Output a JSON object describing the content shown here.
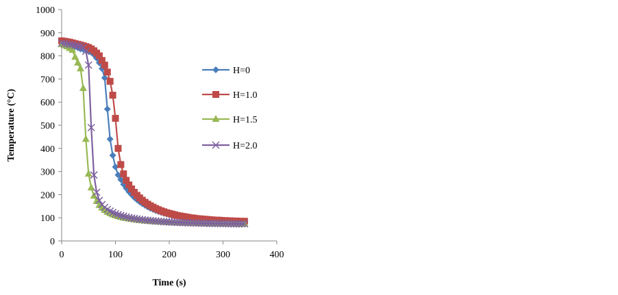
{
  "chart_data": {
    "type": "line",
    "xlabel": "Time (s)",
    "ylabel": "Temperature (°C)",
    "xlim": [
      0,
      400
    ],
    "ylim": [
      0,
      1000
    ],
    "xticks": [
      0,
      100,
      200,
      300,
      400
    ],
    "yticks": [
      0,
      100,
      200,
      300,
      400,
      500,
      600,
      700,
      800,
      900,
      1000
    ],
    "grid": false,
    "legend": "right",
    "x": [
      0,
      5,
      10,
      15,
      20,
      25,
      30,
      35,
      40,
      45,
      50,
      55,
      60,
      65,
      70,
      75,
      80,
      85,
      90,
      95,
      100,
      105,
      110,
      115,
      120,
      125,
      130,
      135,
      140,
      145,
      150,
      155,
      160,
      165,
      170,
      175,
      180,
      185,
      190,
      195,
      200,
      205,
      210,
      215,
      220,
      225,
      230,
      235,
      240,
      245,
      250,
      255,
      260,
      265,
      270,
      275,
      280,
      285,
      290,
      295,
      300,
      305,
      310,
      315,
      320,
      325,
      330,
      335,
      340
    ],
    "series": [
      {
        "name": "H=0",
        "color": "#4a7ebb",
        "marker": "diamond",
        "values": [
          860,
          858,
          855,
          850,
          845,
          840,
          835,
          830,
          828,
          825,
          820,
          815,
          805,
          790,
          770,
          745,
          705,
          570,
          440,
          370,
          320,
          285,
          265,
          245,
          228,
          213,
          200,
          188,
          178,
          169,
          161,
          154,
          147,
          141,
          136,
          131,
          127,
          123,
          119,
          116,
          113,
          110,
          107,
          105,
          103,
          101,
          99,
          97,
          96,
          94,
          93,
          92,
          91,
          90,
          89,
          88,
          87,
          86,
          86,
          85,
          84,
          84,
          83,
          83,
          82,
          82,
          81,
          81,
          80
        ]
      },
      {
        "name": "H=1.0",
        "color": "#be4b48",
        "marker": "square",
        "values": [
          865,
          863,
          861,
          859,
          856,
          853,
          850,
          847,
          844,
          840,
          836,
          830,
          822,
          812,
          800,
          780,
          760,
          730,
          690,
          630,
          530,
          400,
          330,
          290,
          262,
          242,
          225,
          210,
          197,
          186,
          176,
          167,
          159,
          152,
          146,
          140,
          135,
          130,
          126,
          122,
          119,
          116,
          113,
          110,
          108,
          106,
          104,
          102,
          100,
          99,
          97,
          96,
          95,
          94,
          93,
          92,
          91,
          90,
          90,
          89,
          88,
          88,
          87,
          87,
          86,
          86,
          85,
          85,
          85
        ]
      },
      {
        "name": "H=1.5",
        "color": "#98b954",
        "marker": "triangle",
        "values": [
          850,
          845,
          840,
          833,
          825,
          795,
          770,
          745,
          660,
          440,
          290,
          230,
          195,
          172,
          155,
          143,
          133,
          125,
          119,
          114,
          110,
          106,
          103,
          100,
          98,
          96,
          94,
          92,
          91,
          89,
          88,
          87,
          86,
          85,
          84,
          83,
          83,
          82,
          81,
          81,
          80,
          80,
          79,
          79,
          78,
          78,
          78,
          77,
          77,
          77,
          76,
          76,
          76,
          76,
          75,
          75,
          75,
          75,
          75,
          74,
          74,
          74,
          74,
          74,
          74,
          73,
          73,
          73,
          73
        ]
      },
      {
        "name": "H=2.0",
        "color": "#7d60a0",
        "marker": "x",
        "values": [
          855,
          853,
          851,
          849,
          847,
          845,
          843,
          840,
          836,
          820,
          760,
          490,
          285,
          210,
          175,
          157,
          145,
          136,
          129,
          123,
          118,
          114,
          110,
          107,
          104,
          101,
          99,
          97,
          95,
          93,
          92,
          90,
          89,
          88,
          87,
          86,
          85,
          84,
          83,
          83,
          82,
          81,
          81,
          80,
          80,
          79,
          79,
          78,
          78,
          78,
          77,
          77,
          77,
          76,
          76,
          76,
          76,
          75,
          75,
          75,
          75,
          75,
          74,
          74,
          74,
          74,
          74,
          74,
          74
        ]
      }
    ]
  }
}
